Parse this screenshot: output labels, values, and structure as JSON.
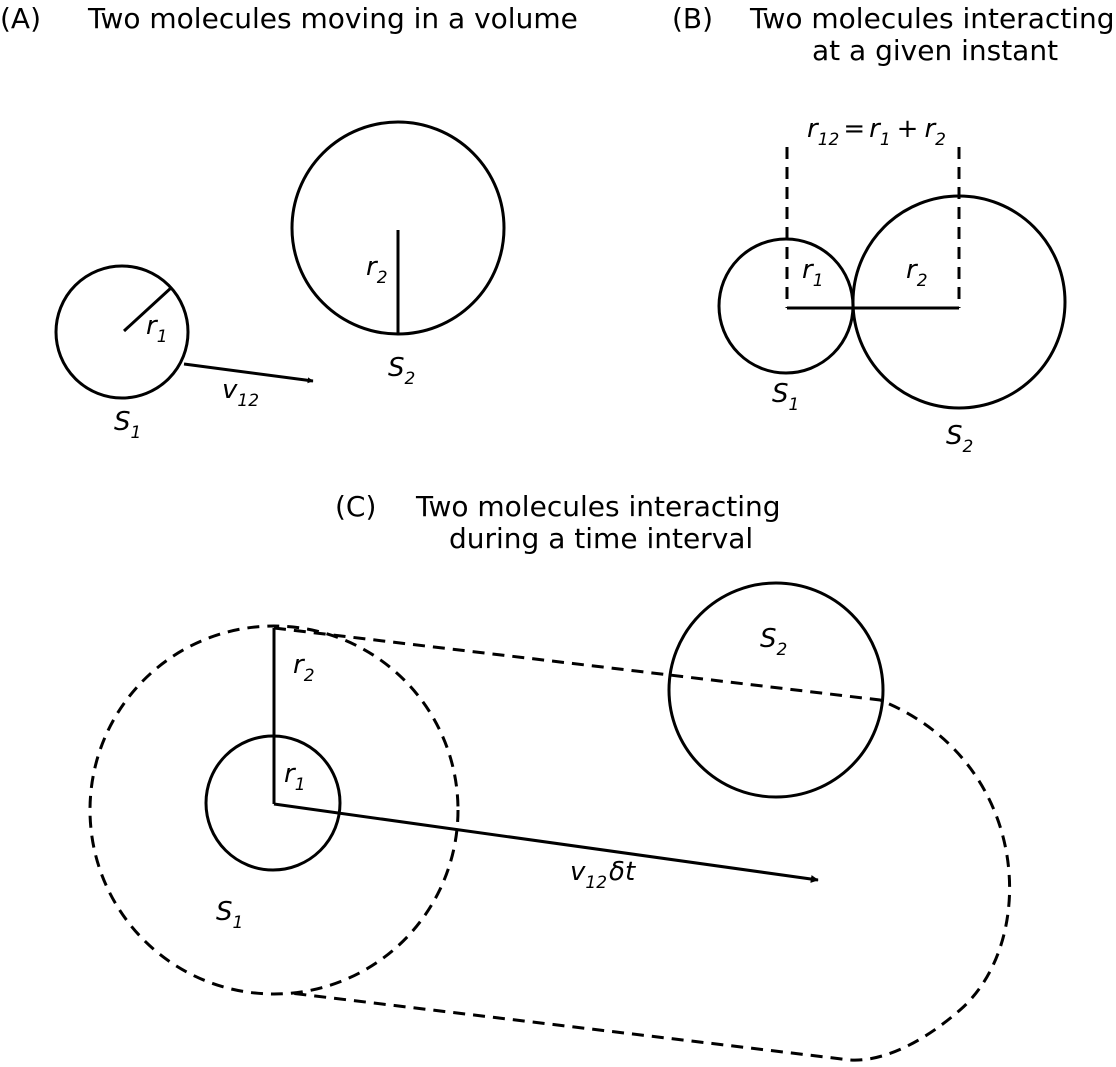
{
  "panels": {
    "a": {
      "letter": "(A)",
      "title": "Two molecules moving in a volume",
      "label_r1": "r",
      "label_r1_sub": "1",
      "label_r2": "r",
      "label_r2_sub": "2",
      "label_v": "v",
      "label_v_sub": "12",
      "label_s1": "S",
      "label_s1_sub": "1",
      "label_s2": "S",
      "label_s2_sub": "2"
    },
    "b": {
      "letter": "(B)",
      "title_line1": "Two molecules interacting",
      "title_line2": "at a given instant",
      "eq_r12": "r",
      "eq_r12_sub": "12",
      "eq_equals": "=",
      "eq_r1": "r",
      "eq_r1_sub": "1",
      "eq_plus": "+",
      "eq_r2": "r",
      "eq_r2_sub": "2",
      "label_r1": "r",
      "label_r1_sub": "1",
      "label_r2": "r",
      "label_r2_sub": "2",
      "label_s1": "S",
      "label_s1_sub": "1",
      "label_s2": "S",
      "label_s2_sub": "2"
    },
    "c": {
      "letter": "(C)",
      "title_line1": "Two molecules interacting",
      "title_line2": "during a time interval",
      "label_r1": "r",
      "label_r1_sub": "1",
      "label_r2": "r",
      "label_r2_sub": "2",
      "label_v": "v",
      "label_v_sub": "12",
      "label_dt": "δt",
      "label_s1": "S",
      "label_s1_sub": "1",
      "label_s2": "S",
      "label_s2_sub": "2"
    }
  }
}
